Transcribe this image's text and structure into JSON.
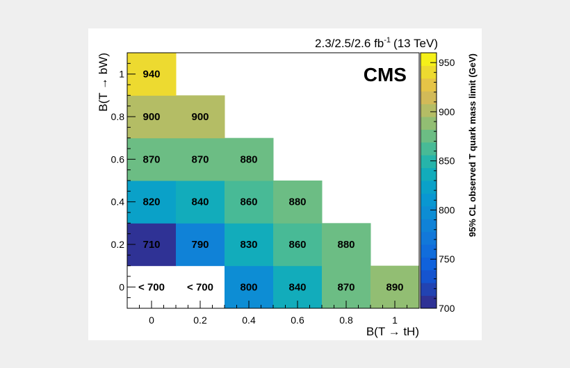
{
  "chart_data": {
    "type": "heatmap",
    "x_categories": [
      "0",
      "0.2",
      "0.4",
      "0.6",
      "0.8",
      "1"
    ],
    "y_categories": [
      "0",
      "0.2",
      "0.4",
      "0.6",
      "0.8",
      "1"
    ],
    "xlabel": "B(T → tH)",
    "ylabel": "B(T → bW)",
    "colorbar_label": "95% CL observed T quark mass limit (GeV)",
    "colorbar_range": [
      700,
      960
    ],
    "colorbar_ticks": [
      "700",
      "750",
      "800",
      "850",
      "900",
      "950"
    ],
    "cells": [
      {
        "x": 0,
        "y": 0,
        "value": 690,
        "label": "< 700"
      },
      {
        "x": 0.2,
        "y": 0,
        "value": 690,
        "label": "< 700"
      },
      {
        "x": 0.4,
        "y": 0,
        "value": 800,
        "label": "800"
      },
      {
        "x": 0.6,
        "y": 0,
        "value": 840,
        "label": "840"
      },
      {
        "x": 0.8,
        "y": 0,
        "value": 870,
        "label": "870"
      },
      {
        "x": 1,
        "y": 0,
        "value": 890,
        "label": "890"
      },
      {
        "x": 0,
        "y": 0.2,
        "value": 710,
        "label": "710"
      },
      {
        "x": 0.2,
        "y": 0.2,
        "value": 790,
        "label": "790"
      },
      {
        "x": 0.4,
        "y": 0.2,
        "value": 830,
        "label": "830"
      },
      {
        "x": 0.6,
        "y": 0.2,
        "value": 860,
        "label": "860"
      },
      {
        "x": 0.8,
        "y": 0.2,
        "value": 880,
        "label": "880"
      },
      {
        "x": 0,
        "y": 0.4,
        "value": 820,
        "label": "820"
      },
      {
        "x": 0.2,
        "y": 0.4,
        "value": 840,
        "label": "840"
      },
      {
        "x": 0.4,
        "y": 0.4,
        "value": 860,
        "label": "860"
      },
      {
        "x": 0.6,
        "y": 0.4,
        "value": 880,
        "label": "880"
      },
      {
        "x": 0,
        "y": 0.6,
        "value": 870,
        "label": "870"
      },
      {
        "x": 0.2,
        "y": 0.6,
        "value": 870,
        "label": "870"
      },
      {
        "x": 0.4,
        "y": 0.6,
        "value": 880,
        "label": "880"
      },
      {
        "x": 0,
        "y": 0.8,
        "value": 900,
        "label": "900"
      },
      {
        "x": 0.2,
        "y": 0.8,
        "value": 900,
        "label": "900"
      },
      {
        "x": 0,
        "y": 1,
        "value": 940,
        "label": "940"
      }
    ],
    "annotations": {
      "experiment": "CMS",
      "lumi": "2.3/2.5/2.6 fb",
      "lumi_sup": "-1",
      "lumi_energy": "(13 TeV)"
    }
  }
}
